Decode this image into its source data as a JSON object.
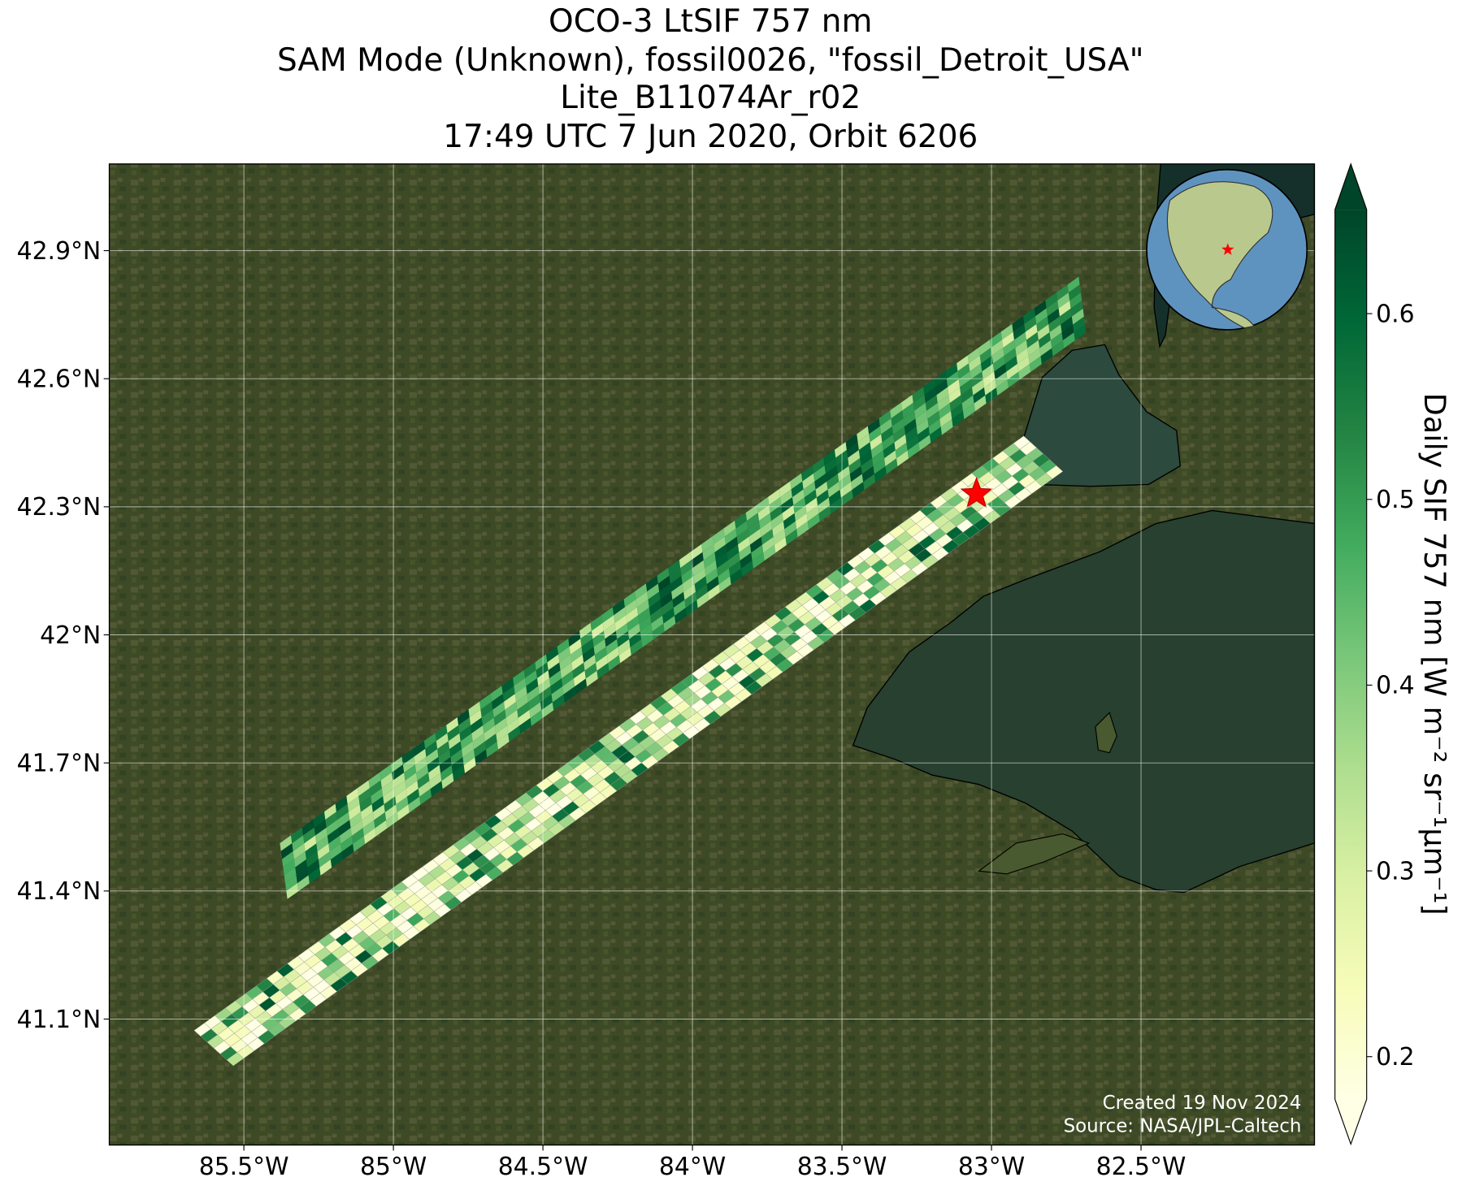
{
  "chart_data": {
    "type": "map",
    "title": [
      "OCO-3 LtSIF 757 nm",
      "SAM Mode (Unknown), fossil0026, \"fossil_Detroit_USA\"",
      "Lite_B11074Ar_r02",
      "17:49 UTC 7 Jun 2020, Orbit 6206"
    ],
    "xlim": [
      -85.95,
      -81.92
    ],
    "ylim": [
      40.805,
      43.103
    ],
    "xticks": [
      {
        "value": -85.5,
        "label": "85.5°W"
      },
      {
        "value": -85,
        "label": "85°W"
      },
      {
        "value": -84.5,
        "label": "84.5°W"
      },
      {
        "value": -84,
        "label": "84°W"
      },
      {
        "value": -83.5,
        "label": "83.5°W"
      },
      {
        "value": -83,
        "label": "83°W"
      },
      {
        "value": -82.5,
        "label": "82.5°W"
      }
    ],
    "yticks": [
      {
        "value": 41.1,
        "label": "41.1°N"
      },
      {
        "value": 41.4,
        "label": "41.4°N"
      },
      {
        "value": 41.7,
        "label": "41.7°N"
      },
      {
        "value": 42,
        "label": "42°N"
      },
      {
        "value": 42.3,
        "label": "42.3°N"
      },
      {
        "value": 42.6,
        "label": "42.6°N"
      },
      {
        "value": 42.9,
        "label": "42.9°N"
      }
    ],
    "grid": true,
    "colorbar": {
      "label": "Daily SIF 757 nm [W m⁻² sr⁻¹μm⁻¹]",
      "lim": [
        0.177,
        0.656
      ],
      "ticks": [
        0.2,
        0.3,
        0.4,
        0.5,
        0.6
      ],
      "colors": [
        "#ffffe5",
        "#f7fcb9",
        "#d9f0a3",
        "#addd8e",
        "#78c679",
        "#41ab5d",
        "#238443",
        "#006837",
        "#004529"
      ]
    },
    "target": {
      "lon": -83.05,
      "lat": 42.33,
      "color": "#ff0000"
    },
    "credits": [
      "Created 19 Nov 2024",
      "Source: NASA/JPL-Caltech"
    ]
  }
}
